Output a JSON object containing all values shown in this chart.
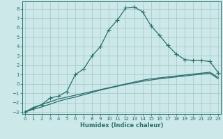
{
  "xlabel": "Humidex (Indice chaleur)",
  "x": [
    0,
    1,
    2,
    3,
    4,
    5,
    6,
    7,
    8,
    9,
    10,
    11,
    12,
    13,
    14,
    15,
    16,
    17,
    18,
    19,
    20,
    21,
    22,
    23
  ],
  "curve_main": [
    -3.0,
    -2.6,
    -2.2,
    -1.5,
    -1.3,
    -0.8,
    1.0,
    1.6,
    3.0,
    4.0,
    5.8,
    6.8,
    8.1,
    8.2,
    7.7,
    6.2,
    5.2,
    4.1,
    3.2,
    2.6,
    2.5,
    2.5,
    2.4,
    1.2
  ],
  "curve_lower1": [
    -3.0,
    -2.5,
    -2.2,
    -1.9,
    -1.6,
    -1.4,
    -1.2,
    -1.0,
    -0.8,
    -0.6,
    -0.4,
    -0.2,
    0.0,
    0.2,
    0.4,
    0.55,
    0.65,
    0.75,
    0.85,
    0.95,
    1.05,
    1.15,
    1.25,
    0.7
  ],
  "curve_lower2": [
    -3.0,
    -2.7,
    -2.45,
    -2.15,
    -1.85,
    -1.6,
    -1.4,
    -1.15,
    -0.9,
    -0.65,
    -0.45,
    -0.25,
    -0.05,
    0.12,
    0.28,
    0.42,
    0.55,
    0.65,
    0.75,
    0.85,
    0.95,
    1.05,
    1.15,
    0.55
  ],
  "bg_color": "#cce8e8",
  "grid_color": "#aacccc",
  "line_color": "#2a6e6e",
  "ylim_min": -3.2,
  "ylim_max": 8.8,
  "yticks": [
    -3,
    -2,
    -1,
    0,
    1,
    2,
    3,
    4,
    5,
    6,
    7,
    8
  ],
  "xlim_min": -0.3,
  "xlim_max": 23.3,
  "marker": "+",
  "markersize": 4,
  "linewidth": 0.9,
  "xlabel_fontsize": 6.0,
  "tick_fontsize": 5.0
}
